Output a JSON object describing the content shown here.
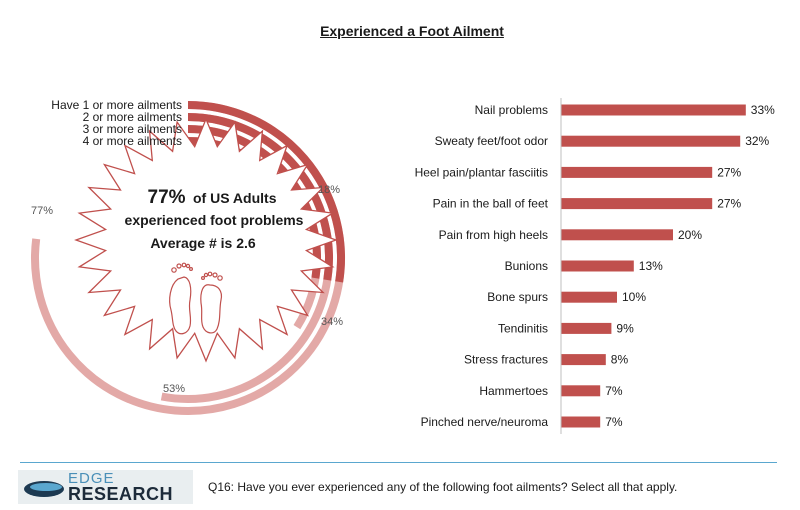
{
  "title": "Experienced a Foot Ailment",
  "radial": {
    "rings": [
      {
        "label": "Have 1 or more ailments",
        "value": 77,
        "value_label": "77%"
      },
      {
        "label": "2 or more ailments",
        "value": 53,
        "value_label": "53%"
      },
      {
        "label": "3 or more ailments",
        "value": 34,
        "value_label": "34%"
      },
      {
        "label": "4 or more ailments",
        "value": 18,
        "value_label": "18%"
      }
    ],
    "center_pct": "77%",
    "center_line1": "of US Adults",
    "center_line2": "experienced foot problems",
    "center_line3": "Average # is 2.6",
    "icon": "feet-icon"
  },
  "chart_data": {
    "type": "bar",
    "orientation": "horizontal",
    "categories": [
      "Nail problems",
      "Sweaty feet/foot odor",
      "Heel pain/plantar fasciitis",
      "Pain in the ball of feet",
      "Pain from high heels",
      "Bunions",
      "Bone  spurs",
      "Tendinitis",
      "Stress fractures",
      "Hammertoes",
      "Pinched nerve/neuroma"
    ],
    "values": [
      33,
      32,
      27,
      27,
      20,
      13,
      10,
      9,
      8,
      7,
      7
    ],
    "value_labels": [
      "33%",
      "32%",
      "27%",
      "27%",
      "20%",
      "13%",
      "10%",
      "9%",
      "8%",
      "7%",
      "7%"
    ],
    "unit": "%",
    "title": "Experienced a Foot Ailment",
    "bar_color": "#c0504d"
  },
  "footer": {
    "logo_top": "EDGE",
    "logo_bottom": "RESEARCH",
    "question": "Q16: Have you ever experienced any of the following foot ailments? Select all that apply."
  },
  "colors": {
    "bar": "#c0504d",
    "ring_dark": "#c0504d",
    "ring_light": "#e3a9a7",
    "footer_line": "#5aa7cf"
  }
}
